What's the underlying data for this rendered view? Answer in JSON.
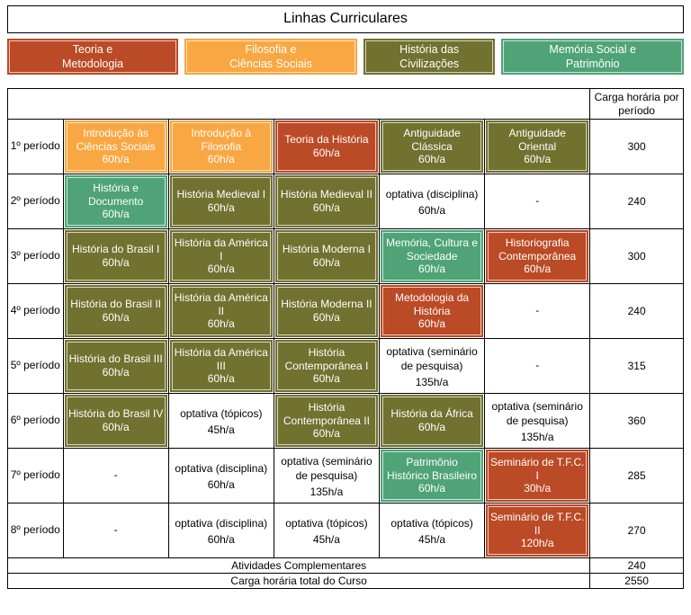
{
  "title": "Linhas Curriculares",
  "colors": {
    "teoria": "#bb4a26",
    "filosofia": "#f9a742",
    "civilizacoes": "#717130",
    "memoria": "#4fa377"
  },
  "legend": [
    {
      "key": "teoria",
      "label": "Teoria e\nMetodologia"
    },
    {
      "key": "filosofia",
      "label": "Filosofia e\nCiências Sociais"
    },
    {
      "key": "civilizacoes",
      "label": "História das\nCivilizações"
    },
    {
      "key": "memoria",
      "label": "Memória Social e\nPatrimônio"
    }
  ],
  "header": {
    "carga_label": "Carga horária por período"
  },
  "rows": [
    {
      "period": "1º período",
      "total": "300",
      "courses": [
        {
          "name": "Introdução às Ciências Sociais",
          "hours": "60h/a",
          "line": "filosofia"
        },
        {
          "name": "Introdução à Filosofia",
          "hours": "60h/a",
          "line": "filosofia"
        },
        {
          "name": "Teoria da História",
          "hours": "60h/a",
          "line": "teoria"
        },
        {
          "name": "Antiguidade Clássica",
          "hours": "60h/a",
          "line": "civilizacoes"
        },
        {
          "name": "Antiguidade Oriental",
          "hours": "60h/a",
          "line": "civilizacoes"
        }
      ]
    },
    {
      "period": "2º período",
      "total": "240",
      "courses": [
        {
          "name": "História e Documento",
          "hours": "60h/a",
          "line": "memoria"
        },
        {
          "name": "História Medieval I",
          "hours": "60h/a",
          "line": "civilizacoes"
        },
        {
          "name": "História Medieval II",
          "hours": "60h/a",
          "line": "civilizacoes"
        },
        {
          "name": "optativa (disciplina)",
          "hours": "60h/a",
          "line": null
        },
        {
          "name": "-",
          "hours": null,
          "line": null
        }
      ]
    },
    {
      "period": "3º período",
      "total": "300",
      "courses": [
        {
          "name": "História do Brasil I",
          "hours": "60h/a",
          "line": "civilizacoes"
        },
        {
          "name": "História da América I",
          "hours": "60h/a",
          "line": "civilizacoes"
        },
        {
          "name": "História Moderna I",
          "hours": "60h/a",
          "line": "civilizacoes"
        },
        {
          "name": "Memória, Cultura e Sociedade",
          "hours": "60h/a",
          "line": "memoria"
        },
        {
          "name": "Historiografia Contemporânea",
          "hours": "60h/a",
          "line": "teoria"
        }
      ]
    },
    {
      "period": "4º período",
      "total": "240",
      "courses": [
        {
          "name": "História do Brasil II",
          "hours": "60h/a",
          "line": "civilizacoes"
        },
        {
          "name": "História da América II",
          "hours": "60h/a",
          "line": "civilizacoes"
        },
        {
          "name": "História Moderna II",
          "hours": "60h/a",
          "line": "civilizacoes"
        },
        {
          "name": "Metodologia da História",
          "hours": "60h/a",
          "line": "teoria"
        },
        {
          "name": "-",
          "hours": null,
          "line": null
        }
      ]
    },
    {
      "period": "5º período",
      "total": "315",
      "courses": [
        {
          "name": "História do Brasil III",
          "hours": "60h/a",
          "line": "civilizacoes"
        },
        {
          "name": "História da América III",
          "hours": "60h/a",
          "line": "civilizacoes"
        },
        {
          "name": "História Contemporânea I",
          "hours": "60h/a",
          "line": "civilizacoes"
        },
        {
          "name": "optativa (seminário de pesquisa)",
          "hours": "135h/a",
          "line": null
        },
        {
          "name": "-",
          "hours": null,
          "line": null
        }
      ]
    },
    {
      "period": "6º período",
      "total": "360",
      "courses": [
        {
          "name": "História do Brasil IV",
          "hours": "60h/a",
          "line": "civilizacoes"
        },
        {
          "name": "optativa (tópicos)",
          "hours": "45h/a",
          "line": null
        },
        {
          "name": "História Contemporânea II",
          "hours": "60h/a",
          "line": "civilizacoes"
        },
        {
          "name": "História da África",
          "hours": "60h/a",
          "line": "civilizacoes"
        },
        {
          "name": "optativa (seminário de pesquisa)",
          "hours": "135h/a",
          "line": null
        }
      ]
    },
    {
      "period": "7º período",
      "total": "285",
      "courses": [
        {
          "name": "-",
          "hours": null,
          "line": null
        },
        {
          "name": "optativa (disciplina)",
          "hours": "60h/a",
          "line": null
        },
        {
          "name": "optativa (seminário de pesquisa)",
          "hours": "135h/a",
          "line": null
        },
        {
          "name": "Patrimônio Histórico Brasileiro",
          "hours": "60h/a",
          "line": "memoria"
        },
        {
          "name": "Seminário de T.F.C. I",
          "hours": "30h/a",
          "line": "teoria"
        }
      ]
    },
    {
      "period": "8º período",
      "total": "270",
      "courses": [
        {
          "name": "-",
          "hours": null,
          "line": null
        },
        {
          "name": "optativa (disciplina)",
          "hours": "60h/a",
          "line": null
        },
        {
          "name": "optativa (tópicos)",
          "hours": "45h/a",
          "line": null
        },
        {
          "name": "optativa (tópicos)",
          "hours": "45h/a",
          "line": null
        },
        {
          "name": "Seminário de T.F.C. II",
          "hours": "120h/a",
          "line": "teoria"
        }
      ]
    }
  ],
  "footer": [
    {
      "label": "Atividades Complementares",
      "value": "240"
    },
    {
      "label": "Carga horária total do Curso",
      "value": "2550"
    }
  ]
}
